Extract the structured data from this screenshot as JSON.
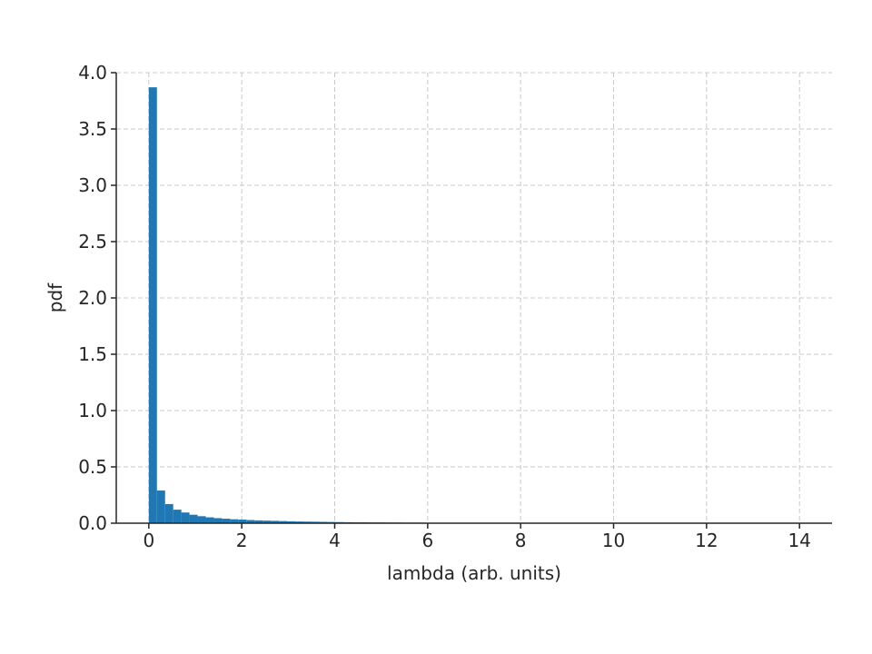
{
  "chart_data": {
    "type": "bar",
    "title": "",
    "xlabel": "lambda (arb. units)",
    "ylabel": "pdf",
    "xlim": [
      -0.7,
      14.7
    ],
    "ylim": [
      0,
      4.0
    ],
    "xticks": [
      0,
      2,
      4,
      6,
      8,
      10,
      12,
      14
    ],
    "xtick_labels": [
      "0",
      "2",
      "4",
      "6",
      "8",
      "10",
      "12",
      "14"
    ],
    "yticks": [
      0.0,
      0.5,
      1.0,
      1.5,
      2.0,
      2.5,
      3.0,
      3.5,
      4.0
    ],
    "ytick_labels": [
      "0.0",
      "0.5",
      "1.0",
      "1.5",
      "2.0",
      "2.5",
      "3.0",
      "3.5",
      "4.0"
    ],
    "grid": true,
    "bar_color": "#1f77b4",
    "bin_width": 0.175,
    "bin_starts": [
      0.0,
      0.175,
      0.35,
      0.525,
      0.7,
      0.875,
      1.05,
      1.225,
      1.4,
      1.575,
      1.75,
      1.925,
      2.1,
      2.275,
      2.45,
      2.625,
      2.8,
      2.975,
      3.15,
      3.325,
      3.5,
      3.675,
      3.85,
      4.025,
      4.2,
      4.375,
      4.55,
      4.725,
      4.9,
      5.075,
      5.25,
      5.425,
      5.6,
      5.775,
      5.95,
      6.125,
      6.3,
      6.475,
      6.65,
      6.825
    ],
    "values": [
      3.87,
      0.29,
      0.17,
      0.12,
      0.095,
      0.075,
      0.062,
      0.052,
      0.045,
      0.04,
      0.035,
      0.032,
      0.028,
      0.025,
      0.023,
      0.021,
      0.019,
      0.017,
      0.015,
      0.014,
      0.013,
      0.012,
      0.011,
      0.01,
      0.009,
      0.008,
      0.008,
      0.007,
      0.007,
      0.006,
      0.006,
      0.005,
      0.005,
      0.005,
      0.004,
      0.004,
      0.003,
      0.003,
      0.003,
      0.003
    ]
  }
}
